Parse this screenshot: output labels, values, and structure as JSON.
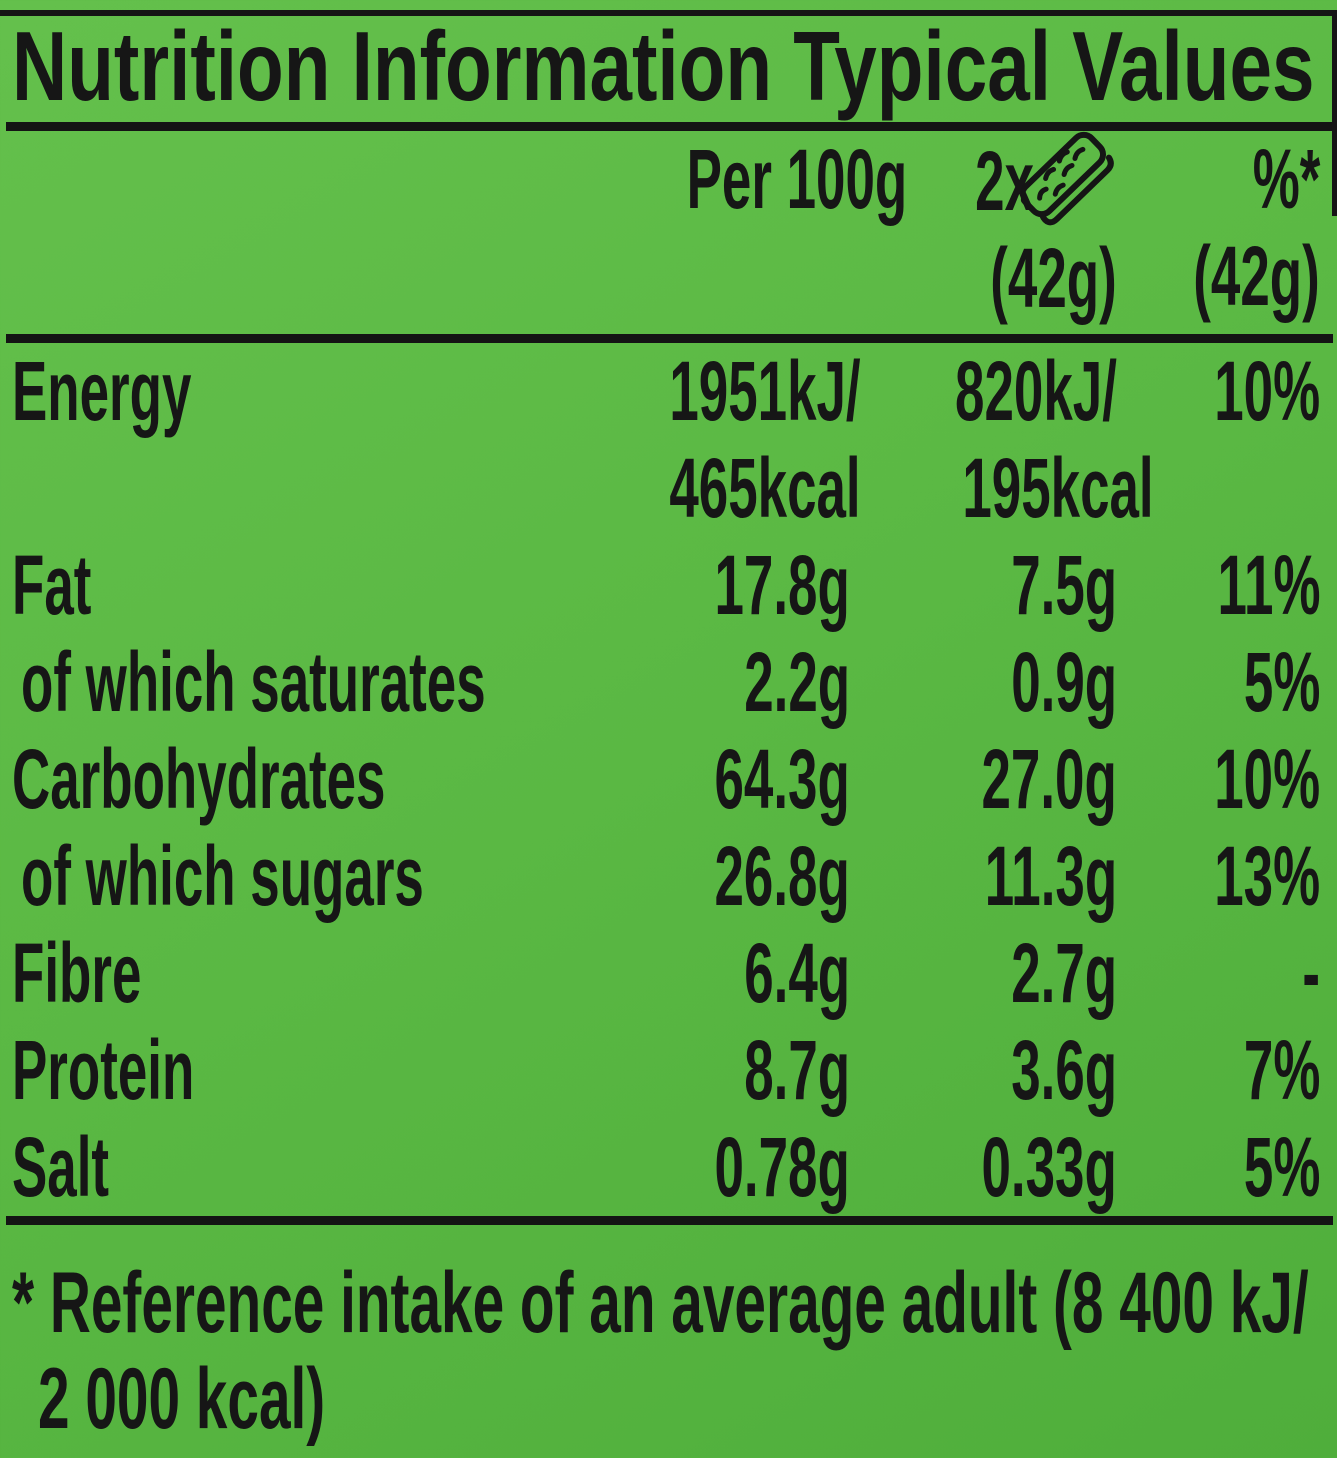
{
  "colors": {
    "background_green_light": "#64c04c",
    "background_green_dark": "#4fae3b",
    "text_black": "#161616",
    "rule_black": "#141414"
  },
  "title": "Nutrition Information Typical Values",
  "header": {
    "per_100g": "Per 100g",
    "serving_prefix": "2x ",
    "serving_icon": "snack-bar-icon",
    "percent": "%*",
    "serving_weight": "(42g)",
    "percent_weight": "(42g)"
  },
  "rows": [
    {
      "label": "Energy",
      "per_100g": "1951kJ/",
      "per_serving": "820kJ/",
      "percent": "10%",
      "per_100g_line2": "465kcal",
      "per_serving_line2": "195kcal",
      "indent": false
    },
    {
      "label": "Fat",
      "per_100g": "17.8g",
      "per_serving": "7.5g",
      "percent": "11%",
      "indent": false
    },
    {
      "label": "of which saturates",
      "per_100g": "2.2g",
      "per_serving": "0.9g",
      "percent": "5%",
      "indent": true
    },
    {
      "label": "Carbohydrates",
      "per_100g": "64.3g",
      "per_serving": "27.0g",
      "percent": "10%",
      "indent": false
    },
    {
      "label": "of which sugars",
      "per_100g": "26.8g",
      "per_serving": "11.3g",
      "percent": "13%",
      "indent": true
    },
    {
      "label": "Fibre",
      "per_100g": "6.4g",
      "per_serving": "2.7g",
      "percent": "-",
      "indent": false
    },
    {
      "label": "Protein",
      "per_100g": "8.7g",
      "per_serving": "3.6g",
      "percent": "7%",
      "indent": false
    },
    {
      "label": "Salt",
      "per_100g": "0.78g",
      "per_serving": "0.33g",
      "percent": "5%",
      "indent": false
    }
  ],
  "footnote": {
    "line1": "* Reference intake of an average adult (8 400 kJ/",
    "line2": "2 000 kcal)"
  }
}
